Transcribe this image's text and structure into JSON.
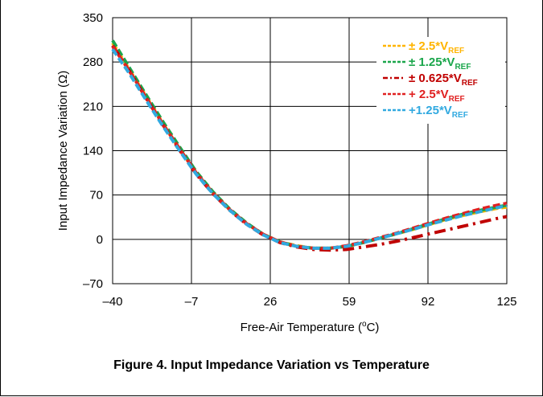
{
  "caption": "Figure 4. Input Impedance Variation vs Temperature",
  "colors": {
    "grid": "#000000",
    "series_pm2_5": "#ffb400",
    "series_pm1_25": "#1aa64b",
    "series_pm0_625": "#c00000",
    "series_p2_5": "#e02020",
    "series_p1_25": "#31a9e0"
  },
  "chart_data": {
    "type": "line",
    "title": "",
    "xlabel": "Free-Air Temperature (",
    "xlabel_sup": "o",
    "xlabel_tail": "C)",
    "ylabel": "Input Impedance Variation (Ω)",
    "xlim": [
      -40,
      125
    ],
    "ylim": [
      -70,
      350
    ],
    "xticks": [
      "–40",
      "–7",
      "26",
      "59",
      "92",
      "125"
    ],
    "yticks": [
      "350",
      "280",
      "210",
      "140",
      "70",
      "0",
      "–70"
    ],
    "xtick_values": [
      -40,
      -7,
      26,
      59,
      92,
      125
    ],
    "ytick_values": [
      350,
      280,
      210,
      140,
      70,
      0,
      -70
    ],
    "grid": true,
    "legend_position": "top-right",
    "series": [
      {
        "name": "± 2.5*V",
        "sub": "REF",
        "color": "#ffb400",
        "dash": "dash",
        "x": [
          -40,
          -33,
          -26,
          -19,
          -12,
          -5,
          2,
          9,
          16,
          23,
          30,
          37,
          44,
          51,
          58,
          65,
          72,
          79,
          86,
          93,
          100,
          107,
          114,
          121,
          125
        ],
        "y": [
          310,
          268,
          226,
          183,
          143,
          105,
          74,
          47,
          25,
          8,
          -4,
          -10,
          -14,
          -14,
          -11,
          -5,
          2,
          9,
          16,
          24,
          32,
          38,
          44,
          49,
          51
        ]
      },
      {
        "name": "± 1.25*V",
        "sub": "REF",
        "color": "#1aa64b",
        "dash": "dash",
        "x": [
          -40,
          -33,
          -26,
          -19,
          -12,
          -5,
          2,
          9,
          16,
          23,
          30,
          37,
          44,
          51,
          58,
          65,
          72,
          79,
          86,
          93,
          100,
          107,
          114,
          121,
          125
        ],
        "y": [
          314,
          271,
          228,
          186,
          146,
          107,
          75,
          48,
          26,
          8,
          -4,
          -11,
          -14,
          -14,
          -11,
          -5,
          2,
          9,
          17,
          25,
          33,
          40,
          46,
          51,
          54
        ]
      },
      {
        "name": "± 0.625*V",
        "sub": "REF",
        "color": "#c00000",
        "dash": "dashdot",
        "x": [
          -40,
          -33,
          -26,
          -19,
          -12,
          -5,
          2,
          9,
          16,
          23,
          30,
          37,
          44,
          51,
          58,
          65,
          72,
          79,
          86,
          93,
          100,
          107,
          114,
          121,
          125
        ],
        "y": [
          306,
          266,
          223,
          181,
          141,
          103,
          72,
          46,
          24,
          7,
          -5,
          -12,
          -16,
          -17,
          -16,
          -12,
          -8,
          -3,
          3,
          9,
          15,
          21,
          27,
          33,
          36
        ]
      },
      {
        "name": "+ 2.5*V",
        "sub": "REF",
        "color": "#e02020",
        "dash": "dash",
        "x": [
          -40,
          -33,
          -26,
          -19,
          -12,
          -5,
          2,
          9,
          16,
          23,
          30,
          37,
          44,
          51,
          58,
          65,
          72,
          79,
          86,
          93,
          100,
          107,
          114,
          121,
          125
        ],
        "y": [
          305,
          266,
          224,
          182,
          143,
          105,
          73,
          47,
          25,
          8,
          -4,
          -11,
          -14,
          -14,
          -10,
          -4,
          3,
          10,
          18,
          26,
          34,
          41,
          48,
          54,
          57
        ]
      },
      {
        "name": "+1.25*V",
        "sub": "REF",
        "color": "#31a9e0",
        "dash": "dash",
        "x": [
          -40,
          -33,
          -26,
          -19,
          -12,
          -5,
          2,
          9,
          16,
          23,
          30,
          37,
          44,
          51,
          58,
          65,
          72,
          79,
          86,
          93,
          100,
          107,
          114,
          121,
          125
        ],
        "y": [
          300,
          262,
          220,
          179,
          140,
          103,
          72,
          46,
          24,
          7,
          -5,
          -11,
          -14,
          -14,
          -11,
          -5,
          2,
          9,
          16,
          24,
          31,
          38,
          44,
          50,
          53
        ]
      }
    ]
  }
}
